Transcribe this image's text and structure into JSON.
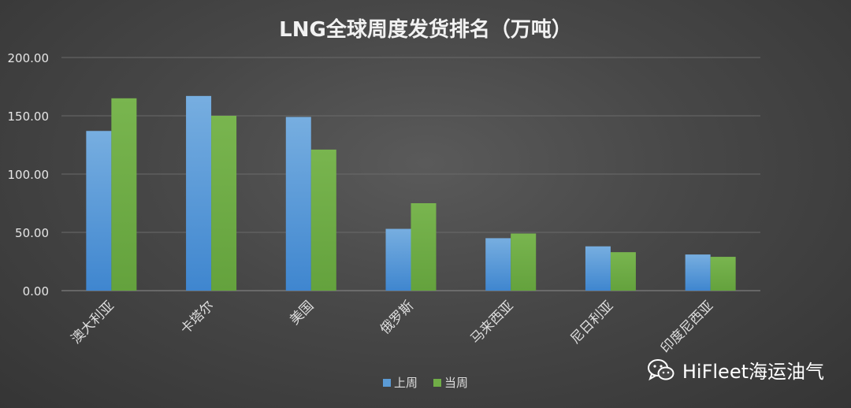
{
  "chart_data": {
    "type": "bar",
    "title": "LNG全球周度发货排名（万吨）",
    "categories": [
      "澳大利亚",
      "卡塔尔",
      "美国",
      "俄罗斯",
      "马来西亚",
      "尼日利亚",
      "印度尼西亚"
    ],
    "series": [
      {
        "name": "上周",
        "values": [
          137,
          167,
          149,
          53,
          45,
          38,
          31
        ],
        "color": "#5b9bd5"
      },
      {
        "name": "当周",
        "values": [
          165,
          150,
          121,
          75,
          49,
          33,
          29
        ],
        "color": "#70ad47"
      }
    ],
    "yticks": [
      "0.00",
      "50.00",
      "100.00",
      "150.00",
      "200.00"
    ],
    "ylim": [
      0,
      200
    ],
    "xlabel": "",
    "ylabel": "",
    "grid": true,
    "legend_position": "bottom"
  },
  "watermark": {
    "text": "HiFleet海运油气",
    "icon": "wechat-icon"
  }
}
